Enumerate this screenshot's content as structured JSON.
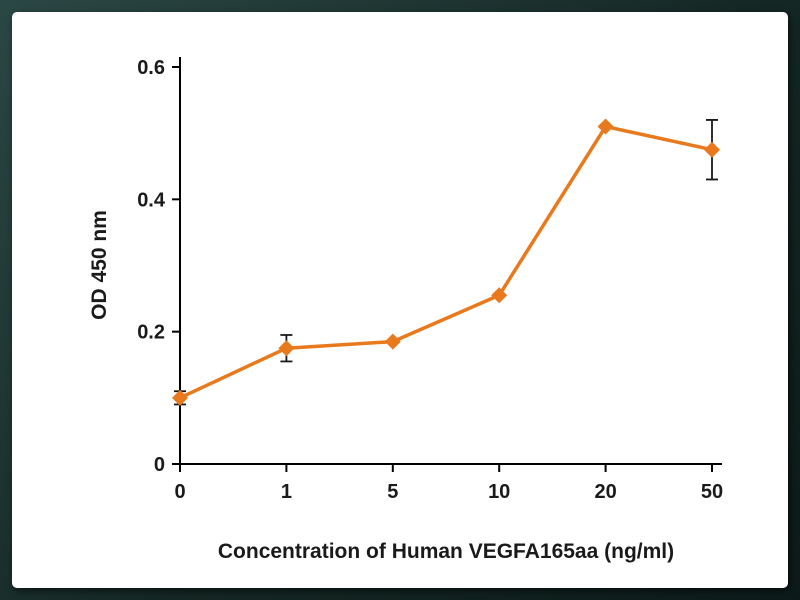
{
  "frame": {
    "background_color": "#152724",
    "panel_background": "#ffffff"
  },
  "chart_data": {
    "type": "line",
    "title": "",
    "xlabel": "Concentration of Human VEGFA165aa (ng/ml)",
    "ylabel": "OD 450 nm",
    "categories": [
      "0",
      "1",
      "5",
      "10",
      "20",
      "50"
    ],
    "series": [
      {
        "name": "OD 450 nm",
        "values": [
          0.1,
          0.175,
          0.185,
          0.255,
          0.51,
          0.475
        ],
        "errors": [
          0.01,
          0.02,
          0,
          0,
          0,
          0.045
        ],
        "color": "#E8791D",
        "marker": "diamond"
      }
    ],
    "ylim": [
      0,
      0.6
    ],
    "yticks": [
      0,
      0.2,
      0.4,
      0.6
    ],
    "ytick_labels": [
      "0",
      "0.2",
      "0.4",
      "0.6"
    ],
    "grid": false,
    "legend": "none",
    "axis_color": "#000000",
    "error_bar_color": "#1a1a1a"
  }
}
